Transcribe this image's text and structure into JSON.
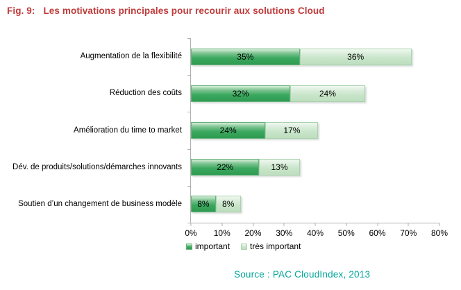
{
  "figure": {
    "title_label": "Fig. 9:",
    "title_text": "Les motivations principales pour recourir aux solutions Cloud",
    "title_color": "#bf3a3a",
    "source_text": "Source : PAC CloudIndex, 2013",
    "source_color": "#00a79a"
  },
  "chart_data": {
    "type": "bar",
    "orientation": "horizontal",
    "stacked": true,
    "title": "Les motivations principales pour recourir aux solutions Cloud",
    "categories": [
      "Augmentation de la flexibilité",
      "Réduction des coûts",
      "Amélioration du time to market",
      "Dév. de produits/solutions/démarches innovants",
      "Soutien d’un changement de business modèle"
    ],
    "series": [
      {
        "name": "important",
        "values": [
          35,
          32,
          24,
          22,
          8
        ],
        "color": "#35a257",
        "gradient": [
          "#d6eed8",
          "#7ec492",
          "#3aa85e",
          "#2f9b52"
        ],
        "border": "#66b27b"
      },
      {
        "name": "très important",
        "values": [
          36,
          24,
          17,
          13,
          8
        ],
        "color": "#c6e4c7",
        "gradient": [
          "#f0f8f0",
          "#dceedd",
          "#c8e5c9",
          "#bedfbf"
        ],
        "border": "#a9d2ae"
      }
    ],
    "value_suffix": "%",
    "xlim": [
      0,
      80
    ],
    "xticks": [
      "0%",
      "10%",
      "20%",
      "30%",
      "40%",
      "50%",
      "60%",
      "70%",
      "80%"
    ],
    "grid": false,
    "legend_position": "bottom-left",
    "bar_label_color": "#000000",
    "axis_color": "#b0b0b0"
  }
}
